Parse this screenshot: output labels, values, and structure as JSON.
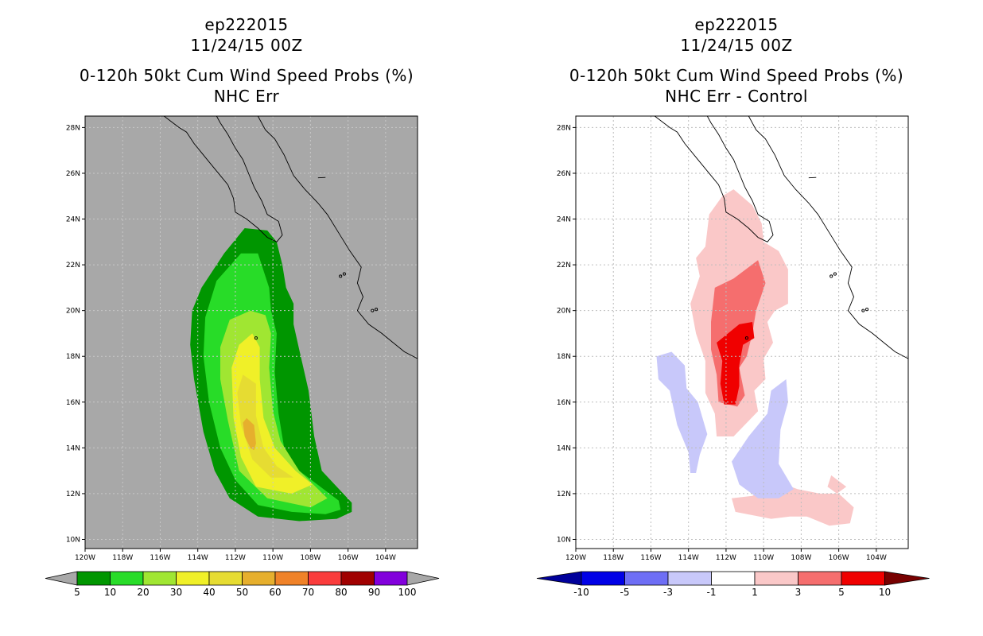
{
  "chart_data": [
    {
      "type": "heatmap",
      "storm_id": "ep222015",
      "date": "11/24/15 00Z",
      "product": "0-120h 50kt Cum Wind Speed Probs (%)",
      "subtitle": "NHC Err",
      "background_color": "#a8a8a8",
      "xlabel": "",
      "ylabel": "",
      "x_ticks": [
        "120W",
        "118W",
        "116W",
        "114W",
        "112W",
        "110W",
        "108W",
        "106W",
        "104W"
      ],
      "y_ticks": [
        "10N",
        "12N",
        "14N",
        "16N",
        "18N",
        "20N",
        "22N",
        "24N",
        "26N",
        "28N"
      ],
      "xlim": [
        -120,
        -102.3
      ],
      "ylim": [
        9.6,
        28.5
      ],
      "grid": true,
      "colorbar": {
        "labels": [
          "5",
          "10",
          "20",
          "30",
          "40",
          "50",
          "60",
          "70",
          "80",
          "90",
          "100"
        ],
        "colors": [
          "#009600",
          "#28dc28",
          "#a0e632",
          "#f0f028",
          "#e6dc32",
          "#e6af2d",
          "#f08228",
          "#fa3c3c",
          "#a00000",
          "#8200dc"
        ],
        "under_color": "#a8a8a8",
        "over_color": "#a8a8a8"
      },
      "contours": [
        {
          "level": "5",
          "color": "#009600",
          "points": [
            [
              -111.5,
              23.6
            ],
            [
              -110.3,
              23.5
            ],
            [
              -109.8,
              23.0
            ],
            [
              -109.5,
              22.0
            ],
            [
              -109.3,
              21.0
            ],
            [
              -108.9,
              20.3
            ],
            [
              -108.9,
              19.4
            ],
            [
              -108.6,
              18.3
            ],
            [
              -108.1,
              16.5
            ],
            [
              -107.8,
              14.5
            ],
            [
              -107.4,
              13.0
            ],
            [
              -105.8,
              11.6
            ],
            [
              -105.8,
              11.2
            ],
            [
              -106.6,
              10.9
            ],
            [
              -108.6,
              10.8
            ],
            [
              -110.8,
              11.0
            ],
            [
              -112.3,
              11.8
            ],
            [
              -113.1,
              13.0
            ],
            [
              -113.7,
              14.7
            ],
            [
              -114.2,
              17.0
            ],
            [
              -114.4,
              18.5
            ],
            [
              -114.3,
              20.0
            ],
            [
              -113.8,
              21.0
            ],
            [
              -112.6,
              22.5
            ]
          ]
        },
        {
          "level": "10",
          "color": "#28dc28",
          "points": [
            [
              -111.7,
              22.5
            ],
            [
              -110.8,
              22.5
            ],
            [
              -110.2,
              21.0
            ],
            [
              -110.1,
              20.0
            ],
            [
              -109.8,
              19.0
            ],
            [
              -109.9,
              17.3
            ],
            [
              -109.7,
              15.5
            ],
            [
              -109.4,
              14.0
            ],
            [
              -108.6,
              13.0
            ],
            [
              -106.5,
              11.7
            ],
            [
              -106.4,
              11.3
            ],
            [
              -107.2,
              11.1
            ],
            [
              -109.0,
              11.2
            ],
            [
              -110.8,
              11.5
            ],
            [
              -112.0,
              12.6
            ],
            [
              -112.8,
              14.0
            ],
            [
              -113.4,
              16.0
            ],
            [
              -113.7,
              18.0
            ],
            [
              -113.6,
              19.7
            ],
            [
              -113.0,
              21.3
            ]
          ]
        },
        {
          "level": "20",
          "color": "#a0e632",
          "points": [
            [
              -111.2,
              20.0
            ],
            [
              -110.4,
              19.8
            ],
            [
              -110.1,
              19.0
            ],
            [
              -110.2,
              17.5
            ],
            [
              -110.0,
              15.6
            ],
            [
              -109.6,
              14.3
            ],
            [
              -108.6,
              13.0
            ],
            [
              -107.1,
              11.8
            ],
            [
              -108.0,
              11.4
            ],
            [
              -110.3,
              11.8
            ],
            [
              -111.8,
              13.0
            ],
            [
              -112.4,
              15.2
            ],
            [
              -112.8,
              17.0
            ],
            [
              -112.8,
              18.4
            ],
            [
              -112.3,
              19.6
            ]
          ]
        },
        {
          "level": "30",
          "color": "#f0f028",
          "points": [
            [
              -111.1,
              19.0
            ],
            [
              -110.7,
              18.4
            ],
            [
              -110.7,
              17.0
            ],
            [
              -110.5,
              15.3
            ],
            [
              -109.9,
              14.0
            ],
            [
              -108.8,
              13.0
            ],
            [
              -107.9,
              12.4
            ],
            [
              -109.0,
              12.0
            ],
            [
              -110.9,
              12.3
            ],
            [
              -111.7,
              13.6
            ],
            [
              -112.1,
              15.3
            ],
            [
              -112.2,
              17.5
            ],
            [
              -111.8,
              18.5
            ]
          ]
        },
        {
          "level": "40",
          "color": "#e6dc32",
          "points": [
            [
              -111.6,
              17.2
            ],
            [
              -110.9,
              16.8
            ],
            [
              -110.9,
              15.4
            ],
            [
              -110.5,
              14.0
            ],
            [
              -109.8,
              13.2
            ],
            [
              -108.9,
              12.7
            ],
            [
              -110.1,
              12.7
            ],
            [
              -111.1,
              13.5
            ],
            [
              -111.7,
              15.0
            ],
            [
              -111.9,
              16.4
            ]
          ]
        },
        {
          "level": "50",
          "color": "#e6af2d",
          "points": [
            [
              -111.4,
              15.3
            ],
            [
              -111.0,
              15.0
            ],
            [
              -110.9,
              14.2
            ],
            [
              -111.0,
              13.9
            ],
            [
              -111.2,
              14.0
            ],
            [
              -111.5,
              14.5
            ],
            [
              -111.6,
              15.1
            ]
          ]
        }
      ]
    },
    {
      "type": "heatmap",
      "storm_id": "ep222015",
      "date": "11/24/15 00Z",
      "product": "0-120h 50kt Cum Wind Speed Probs (%)",
      "subtitle": "NHC Err - Control",
      "background_color": "#ffffff",
      "xlabel": "",
      "ylabel": "",
      "x_ticks": [
        "120W",
        "118W",
        "116W",
        "114W",
        "112W",
        "110W",
        "108W",
        "106W",
        "104W"
      ],
      "y_ticks": [
        "10N",
        "12N",
        "14N",
        "16N",
        "18N",
        "20N",
        "22N",
        "24N",
        "26N",
        "28N"
      ],
      "xlim": [
        -120,
        -102.3
      ],
      "ylim": [
        9.6,
        28.5
      ],
      "grid": true,
      "colorbar": {
        "labels": [
          "-10",
          "-5",
          "-3",
          "-1",
          "1",
          "3",
          "5",
          "10"
        ],
        "colors": [
          "#0000e6",
          "#6e6ef5",
          "#c8c8fa",
          "#ffffff",
          "#fac8c8",
          "#f56e6e",
          "#f00000"
        ],
        "under_color": "#00009b",
        "over_color": "#780000"
      },
      "contours": [
        {
          "level": "1 to 3",
          "color": "#fac8c8",
          "points": [
            [
              -112.2,
              25.0
            ],
            [
              -111.6,
              25.3
            ],
            [
              -110.6,
              24.6
            ],
            [
              -110.1,
              23.8
            ],
            [
              -110.0,
              23.0
            ],
            [
              -109.2,
              22.6
            ],
            [
              -108.7,
              21.8
            ],
            [
              -108.7,
              20.3
            ],
            [
              -109.4,
              20.0
            ],
            [
              -109.8,
              19.5
            ],
            [
              -109.5,
              18.6
            ],
            [
              -110.0,
              17.9
            ],
            [
              -109.9,
              17.0
            ],
            [
              -110.5,
              16.5
            ],
            [
              -110.3,
              15.6
            ],
            [
              -111.6,
              14.5
            ],
            [
              -112.5,
              14.5
            ],
            [
              -112.6,
              15.5
            ],
            [
              -113.1,
              16.4
            ],
            [
              -113.1,
              17.8
            ],
            [
              -113.6,
              19.0
            ],
            [
              -113.9,
              20.3
            ],
            [
              -113.4,
              21.5
            ],
            [
              -113.6,
              22.3
            ],
            [
              -113.1,
              22.8
            ],
            [
              -112.9,
              24.2
            ]
          ]
        },
        {
          "level": "3 to 5",
          "color": "#f56e6e",
          "points": [
            [
              -110.3,
              22.2
            ],
            [
              -109.9,
              21.2
            ],
            [
              -110.4,
              20.0
            ],
            [
              -110.6,
              19.0
            ],
            [
              -110.9,
              18.0
            ],
            [
              -111.3,
              17.5
            ],
            [
              -111.0,
              16.3
            ],
            [
              -111.4,
              15.8
            ],
            [
              -112.4,
              16.0
            ],
            [
              -112.5,
              17.2
            ],
            [
              -112.8,
              18.3
            ],
            [
              -112.8,
              19.5
            ],
            [
              -112.6,
              21.0
            ],
            [
              -111.6,
              21.4
            ]
          ]
        },
        {
          "level": "5 to 10",
          "color": "#f00000",
          "points": [
            [
              -110.6,
              19.5
            ],
            [
              -110.5,
              18.8
            ],
            [
              -111.1,
              18.5
            ],
            [
              -111.3,
              17.6
            ],
            [
              -111.3,
              16.7
            ],
            [
              -111.5,
              15.9
            ],
            [
              -112.1,
              15.9
            ],
            [
              -112.3,
              16.8
            ],
            [
              -112.2,
              17.8
            ],
            [
              -112.5,
              18.6
            ],
            [
              -111.3,
              19.4
            ]
          ]
        },
        {
          "level": "1 to 3",
          "color": "#fac8c8",
          "points": [
            [
              -109.2,
              12.5
            ],
            [
              -108.2,
              12.2
            ],
            [
              -107.0,
              12.0
            ],
            [
              -106.0,
              12.0
            ],
            [
              -105.2,
              11.4
            ],
            [
              -105.4,
              10.7
            ],
            [
              -106.5,
              10.6
            ],
            [
              -107.7,
              11.0
            ],
            [
              -108.6,
              11.0
            ],
            [
              -109.6,
              10.9
            ],
            [
              -111.5,
              11.2
            ],
            [
              -111.7,
              11.8
            ],
            [
              -110.6,
              11.9
            ]
          ]
        },
        {
          "level": "1 to 3",
          "color": "#fac8c8",
          "points": [
            [
              -106.4,
              12.8
            ],
            [
              -105.6,
              12.3
            ],
            [
              -106.1,
              12.0
            ],
            [
              -106.6,
              12.3
            ]
          ]
        },
        {
          "level": "-3 to -1",
          "color": "#c8c8fa",
          "points": [
            [
              -114.9,
              18.2
            ],
            [
              -114.2,
              17.6
            ],
            [
              -114.1,
              16.6
            ],
            [
              -113.5,
              16.0
            ],
            [
              -113.0,
              14.6
            ],
            [
              -113.4,
              13.7
            ],
            [
              -113.6,
              12.9
            ],
            [
              -113.9,
              12.9
            ],
            [
              -114.0,
              13.8
            ],
            [
              -114.6,
              15.0
            ],
            [
              -115.0,
              16.5
            ],
            [
              -115.6,
              17.0
            ],
            [
              -115.7,
              18.0
            ]
          ]
        },
        {
          "level": "-3 to -1",
          "color": "#c8c8fa",
          "points": [
            [
              -108.8,
              17.0
            ],
            [
              -108.7,
              16.0
            ],
            [
              -109.1,
              14.8
            ],
            [
              -109.2,
              13.3
            ],
            [
              -108.4,
              12.2
            ],
            [
              -109.2,
              11.8
            ],
            [
              -110.3,
              11.8
            ],
            [
              -111.3,
              12.4
            ],
            [
              -111.7,
              13.4
            ],
            [
              -110.8,
              14.5
            ],
            [
              -109.8,
              15.5
            ],
            [
              -109.6,
              16.5
            ]
          ]
        }
      ]
    }
  ]
}
